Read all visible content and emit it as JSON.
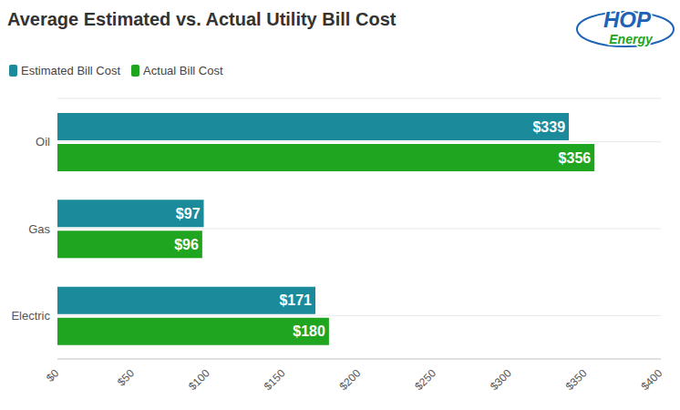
{
  "chart_data": {
    "type": "bar",
    "orientation": "horizontal",
    "title": "Average Estimated vs. Actual Utility Bill Cost",
    "annotations": [
      "HOP",
      "Energy"
    ],
    "categories": [
      "Oil",
      "Gas",
      "Electric"
    ],
    "series": [
      {
        "name": "Estimated Bill Cost",
        "color": "#1b8a9b",
        "values": [
          339,
          97,
          171
        ],
        "value_labels": [
          "$339",
          "$97",
          "$171"
        ]
      },
      {
        "name": "Actual Bill Cost",
        "color": "#1fa51f",
        "values": [
          356,
          96,
          180
        ],
        "value_labels": [
          "$356",
          "$96",
          "$180"
        ]
      }
    ],
    "xlim": [
      0,
      400
    ],
    "xticks": [
      {
        "value": 0,
        "label": "$0"
      },
      {
        "value": 50,
        "label": "$50"
      },
      {
        "value": 100,
        "label": "$100"
      },
      {
        "value": 150,
        "label": "$150"
      },
      {
        "value": 200,
        "label": "$200"
      },
      {
        "value": 250,
        "label": "$250"
      },
      {
        "value": 300,
        "label": "$300"
      },
      {
        "value": 350,
        "label": "$350"
      },
      {
        "value": 400,
        "label": "$400"
      }
    ],
    "data_labels": true,
    "legend": "top-left",
    "grid": true
  }
}
